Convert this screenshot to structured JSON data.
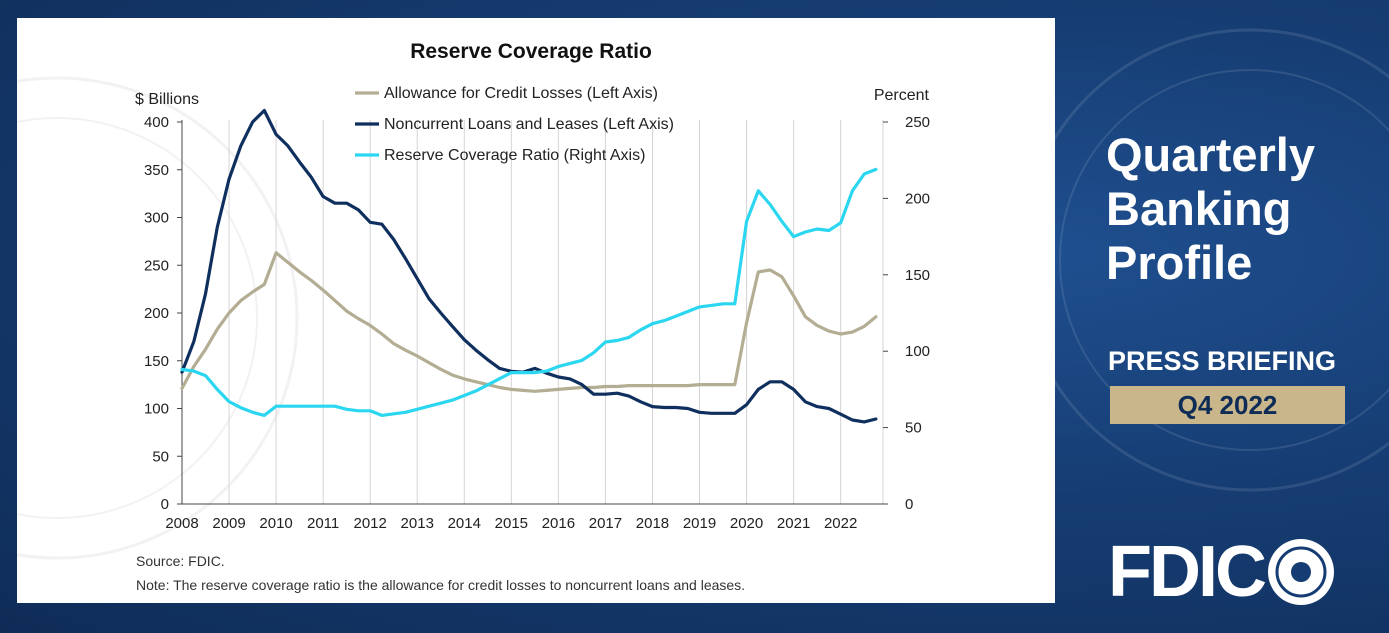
{
  "chart_data": {
    "type": "line",
    "title": "Reserve Coverage Ratio",
    "left_axis_label": "$ Billions",
    "right_axis_label": "Percent",
    "left_ylim": [
      0,
      400
    ],
    "left_ticks": [
      "0",
      "50",
      "100",
      "150",
      "200",
      "250",
      "300",
      "350",
      "400"
    ],
    "right_ylim": [
      0,
      250
    ],
    "right_ticks": [
      "0",
      "50",
      "100",
      "150",
      "200",
      "250"
    ],
    "x_range": [
      2008,
      2022.9
    ],
    "x_ticks": [
      "2008",
      "2009",
      "2010",
      "2011",
      "2012",
      "2013",
      "2014",
      "2015",
      "2016",
      "2017",
      "2018",
      "2019",
      "2020",
      "2021",
      "2022"
    ],
    "grid": "vertical",
    "legend_position": "top-center",
    "series": [
      {
        "name": "Allowance for Credit Losses (Left Axis)",
        "axis": "left",
        "color": "#b3ad94",
        "x": [
          2008,
          2008.25,
          2008.5,
          2008.75,
          2009,
          2009.25,
          2009.5,
          2009.75,
          2010,
          2010.25,
          2010.5,
          2010.75,
          2011,
          2011.25,
          2011.5,
          2011.75,
          2012,
          2012.25,
          2012.5,
          2012.75,
          2013,
          2013.25,
          2013.5,
          2013.75,
          2014,
          2014.25,
          2014.5,
          2014.75,
          2015,
          2015.25,
          2015.5,
          2015.75,
          2016,
          2016.25,
          2016.5,
          2016.75,
          2017,
          2017.25,
          2017.5,
          2017.75,
          2018,
          2018.25,
          2018.5,
          2018.75,
          2019,
          2019.25,
          2019.5,
          2019.75,
          2020,
          2020.25,
          2020.5,
          2020.75,
          2021,
          2021.25,
          2021.5,
          2021.75,
          2022,
          2022.25,
          2022.5,
          2022.75
        ],
        "values": [
          121,
          144,
          162,
          183,
          200,
          213,
          222,
          230,
          263,
          253,
          243,
          234,
          224,
          213,
          202,
          194,
          187,
          178,
          168,
          161,
          155,
          148,
          141,
          135,
          131,
          128,
          125,
          122,
          120,
          119,
          118,
          119,
          120,
          121,
          122,
          122,
          123,
          123,
          124,
          124,
          124,
          124,
          124,
          124,
          125,
          125,
          125,
          125,
          190,
          243,
          245,
          238,
          218,
          196,
          187,
          181,
          178,
          180,
          186,
          196
        ]
      },
      {
        "name": "Noncurrent Loans and Leases (Left Axis)",
        "axis": "left",
        "color": "#0f2f5e",
        "x": [
          2008,
          2008.25,
          2008.5,
          2008.75,
          2009,
          2009.25,
          2009.5,
          2009.75,
          2010,
          2010.25,
          2010.5,
          2010.75,
          2011,
          2011.25,
          2011.5,
          2011.75,
          2012,
          2012.25,
          2012.5,
          2012.75,
          2013,
          2013.25,
          2013.5,
          2013.75,
          2014,
          2014.25,
          2014.5,
          2014.75,
          2015,
          2015.25,
          2015.5,
          2015.75,
          2016,
          2016.25,
          2016.5,
          2016.75,
          2017,
          2017.25,
          2017.5,
          2017.75,
          2018,
          2018.25,
          2018.5,
          2018.75,
          2019,
          2019.25,
          2019.5,
          2019.75,
          2020,
          2020.25,
          2020.5,
          2020.75,
          2021,
          2021.25,
          2021.5,
          2021.75,
          2022,
          2022.25,
          2022.5,
          2022.75
        ],
        "values": [
          138,
          170,
          220,
          290,
          340,
          375,
          400,
          412,
          387,
          375,
          358,
          342,
          322,
          315,
          315,
          308,
          295,
          293,
          277,
          257,
          236,
          215,
          200,
          186,
          172,
          161,
          151,
          142,
          139,
          138,
          142,
          137,
          133,
          131,
          125,
          115,
          115,
          116,
          113,
          107,
          102,
          101,
          101,
          100,
          96,
          95,
          95,
          95,
          104,
          120,
          128,
          128,
          120,
          107,
          102,
          100,
          94,
          88,
          86,
          89
        ]
      },
      {
        "name": "Reserve Coverage Ratio (Right Axis)",
        "axis": "right",
        "color": "#2bd6f0",
        "x": [
          2008,
          2008.25,
          2008.5,
          2008.75,
          2009,
          2009.25,
          2009.5,
          2009.75,
          2010,
          2010.25,
          2010.5,
          2010.75,
          2011,
          2011.25,
          2011.5,
          2011.75,
          2012,
          2012.25,
          2012.5,
          2012.75,
          2013,
          2013.25,
          2013.5,
          2013.75,
          2014,
          2014.25,
          2014.5,
          2014.75,
          2015,
          2015.25,
          2015.5,
          2015.75,
          2016,
          2016.25,
          2016.5,
          2016.75,
          2017,
          2017.25,
          2017.5,
          2017.75,
          2018,
          2018.25,
          2018.5,
          2018.75,
          2019,
          2019.25,
          2019.5,
          2019.75,
          2020,
          2020.25,
          2020.5,
          2020.75,
          2021,
          2021.25,
          2021.5,
          2021.75,
          2022,
          2022.25,
          2022.5,
          2022.75
        ],
        "values": [
          88,
          87,
          84,
          75,
          67,
          63,
          60,
          58,
          64,
          64,
          64,
          64,
          64,
          64,
          62,
          61,
          61,
          58,
          59,
          60,
          62,
          64,
          66,
          68,
          71,
          74,
          78,
          82,
          86,
          86,
          86,
          87,
          90,
          92,
          94,
          99,
          106,
          107,
          109,
          114,
          118,
          120,
          123,
          126,
          129,
          130,
          131,
          131,
          185,
          205,
          196,
          185,
          175,
          178,
          180,
          179,
          184,
          205,
          216,
          219
        ]
      }
    ],
    "source": "Source: FDIC.",
    "note": "Note: The reserve coverage ratio is the allowance for credit losses to noncurrent loans and leases."
  },
  "sidebar": {
    "title_lines": [
      "Quarterly",
      "Banking",
      "Profile"
    ],
    "press_briefing": "PRESS BRIEFING",
    "quarter": "Q4 2022",
    "logo_text": "FDIC"
  },
  "colors": {
    "background": "#163d73",
    "badge": "#c9b68a",
    "text_white": "#ffffff"
  }
}
